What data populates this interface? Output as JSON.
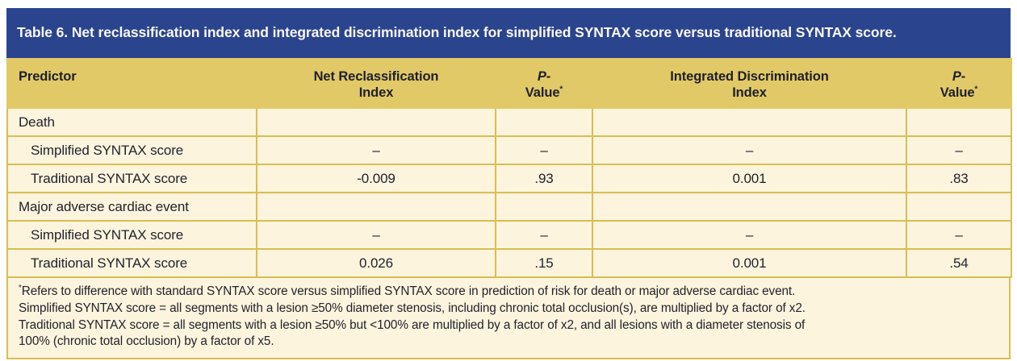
{
  "title": "Table 6. Net reclassification index and integrated discrimination index for simplified SYNTAX score versus traditional SYNTAX score.",
  "colors": {
    "title_bar_bg": "#2B448E",
    "title_text": "#F9F7F2",
    "header_bg": "#E2C967",
    "body_bg": "#FCF4DD",
    "border": "#D8BE52",
    "text": "#22222C"
  },
  "table": {
    "type": "table",
    "header": {
      "predictor": "Predictor",
      "nri_line1": "Net Reclassification",
      "nri_line2": "Index",
      "p1": {
        "italic": "P",
        "dash": "-",
        "word": "Value",
        "sup": "*"
      },
      "idi_line1": "Integrated Discrimination",
      "idi_line2": "Index",
      "p2": {
        "italic": "P",
        "dash": "-",
        "word": "Value",
        "sup": "*"
      }
    },
    "rows": [
      {
        "label": "Death",
        "indent": false,
        "values": [
          "",
          "",
          "",
          ""
        ]
      },
      {
        "label": "Simplified SYNTAX score",
        "indent": true,
        "values": [
          "–",
          "–",
          "–",
          "–"
        ]
      },
      {
        "label": "Traditional SYNTAX score",
        "indent": true,
        "values": [
          "-0.009",
          ".93",
          "0.001",
          ".83"
        ]
      },
      {
        "label": "Major adverse cardiac event",
        "indent": false,
        "values": [
          "",
          "",
          "",
          ""
        ]
      },
      {
        "label": "Simplified SYNTAX score",
        "indent": true,
        "values": [
          "–",
          "–",
          "–",
          "–"
        ]
      },
      {
        "label": "Traditional SYNTAX score",
        "indent": true,
        "values": [
          "0.026",
          ".15",
          "0.001",
          ".54"
        ]
      }
    ]
  },
  "footnote": {
    "sup": "*",
    "lines": [
      "Refers to difference with standard SYNTAX score versus simplified SYNTAX score in prediction of risk for death or major adverse cardiac event.",
      "Simplified SYNTAX score = all segments with a lesion ≥50% diameter stenosis, including chronic total occlusion(s), are multiplied by a factor of x2.",
      "Traditional SYNTAX score = all segments with a lesion ≥50% but <100% are multiplied by a factor of x2, and all lesions with a diameter stenosis of",
      "100% (chronic total occlusion) by a factor of x5."
    ]
  }
}
